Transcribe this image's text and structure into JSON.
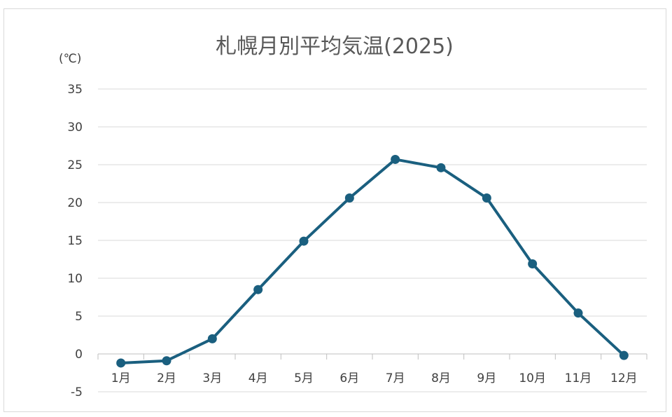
{
  "chart_data": {
    "type": "line",
    "title": "札幌月別平均気温(2025)",
    "unit_label": "(℃)",
    "categories": [
      "1月",
      "2月",
      "3月",
      "4月",
      "5月",
      "6月",
      "7月",
      "8月",
      "9月",
      "10月",
      "11月",
      "12月"
    ],
    "series": [
      {
        "values": [
          -1.2,
          -0.9,
          2.0,
          8.5,
          14.9,
          20.6,
          25.7,
          24.6,
          20.6,
          11.9,
          5.4,
          -0.2
        ],
        "color": "#1a5f7f"
      }
    ],
    "ylim": [
      -5,
      35
    ],
    "yticks": [
      35,
      30,
      25,
      20,
      15,
      10,
      5,
      0,
      -5
    ],
    "grid": true,
    "legend": "none"
  }
}
